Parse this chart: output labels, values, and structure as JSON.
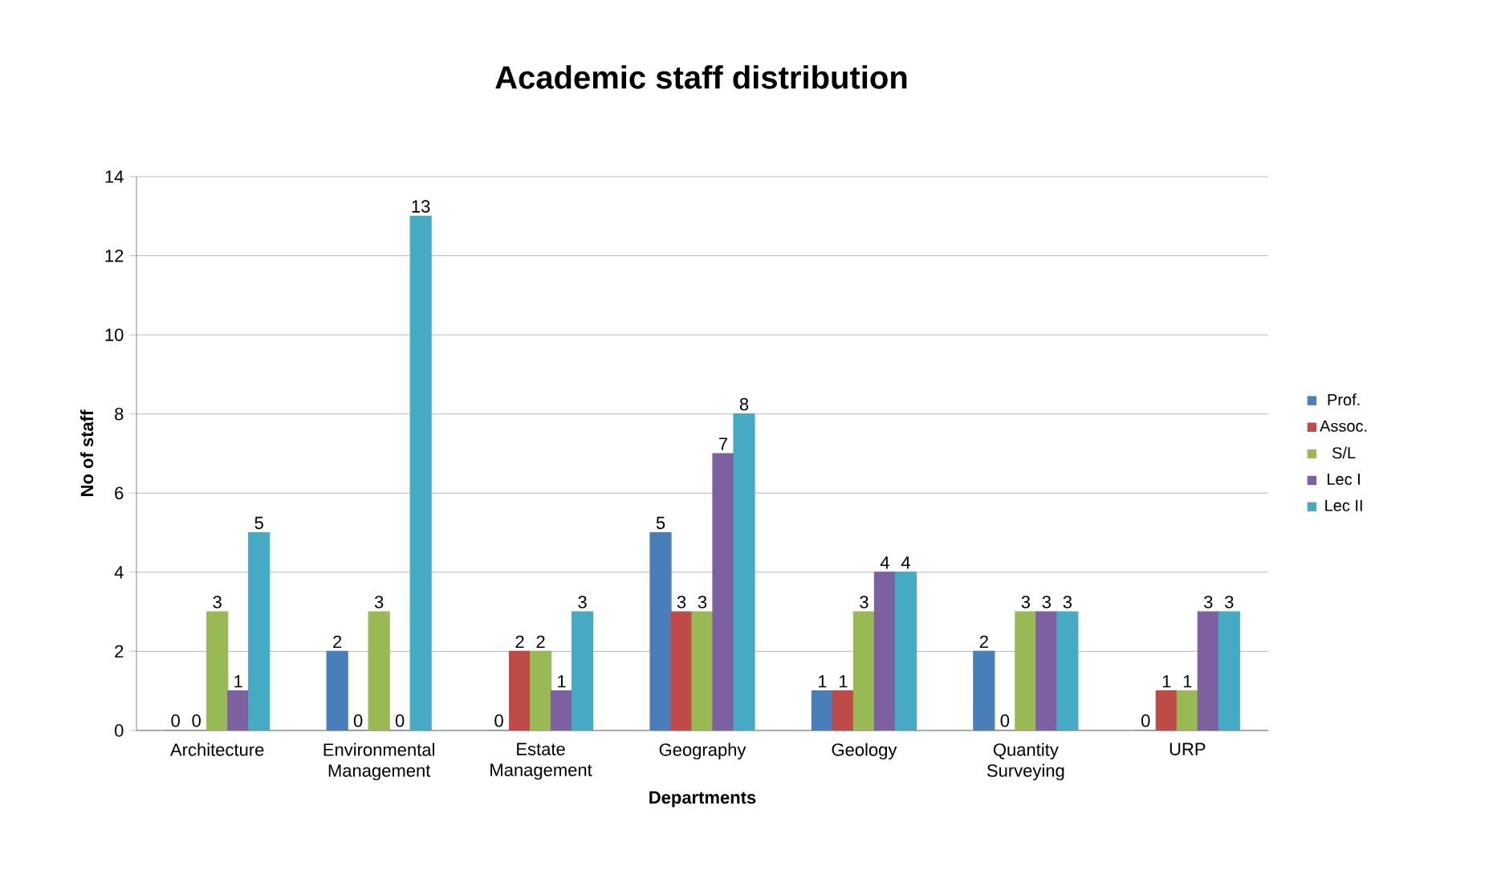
{
  "chart_data": {
    "type": "bar",
    "title": "Academic staff distribution",
    "xlabel": "Departments",
    "ylabel": "No of staff",
    "categories": [
      "Architecture",
      "Environmental Management",
      "Estate Management",
      "Geography",
      "Geology",
      "Quantity Surveying",
      "URP"
    ],
    "series": [
      {
        "name": "Prof.",
        "color": "#4a7ebb",
        "values": [
          0,
          2,
          0,
          5,
          1,
          2,
          0
        ]
      },
      {
        "name": "Assoc.",
        "color": "#be4b48",
        "values": [
          0,
          0,
          2,
          3,
          1,
          0,
          1
        ]
      },
      {
        "name": "S/L",
        "color": "#98b954",
        "values": [
          3,
          3,
          2,
          3,
          3,
          3,
          1
        ]
      },
      {
        "name": "Lec I",
        "color": "#7d60a0",
        "values": [
          1,
          0,
          1,
          7,
          4,
          3,
          3
        ]
      },
      {
        "name": "Lec II",
        "color": "#46aac5",
        "values": [
          5,
          13,
          3,
          8,
          4,
          3,
          3
        ]
      }
    ],
    "ylim": [
      0,
      14
    ],
    "yticks": [
      0,
      2,
      4,
      6,
      8,
      10,
      12,
      14
    ],
    "grid": "y",
    "legend": "right",
    "data_labels": true
  }
}
